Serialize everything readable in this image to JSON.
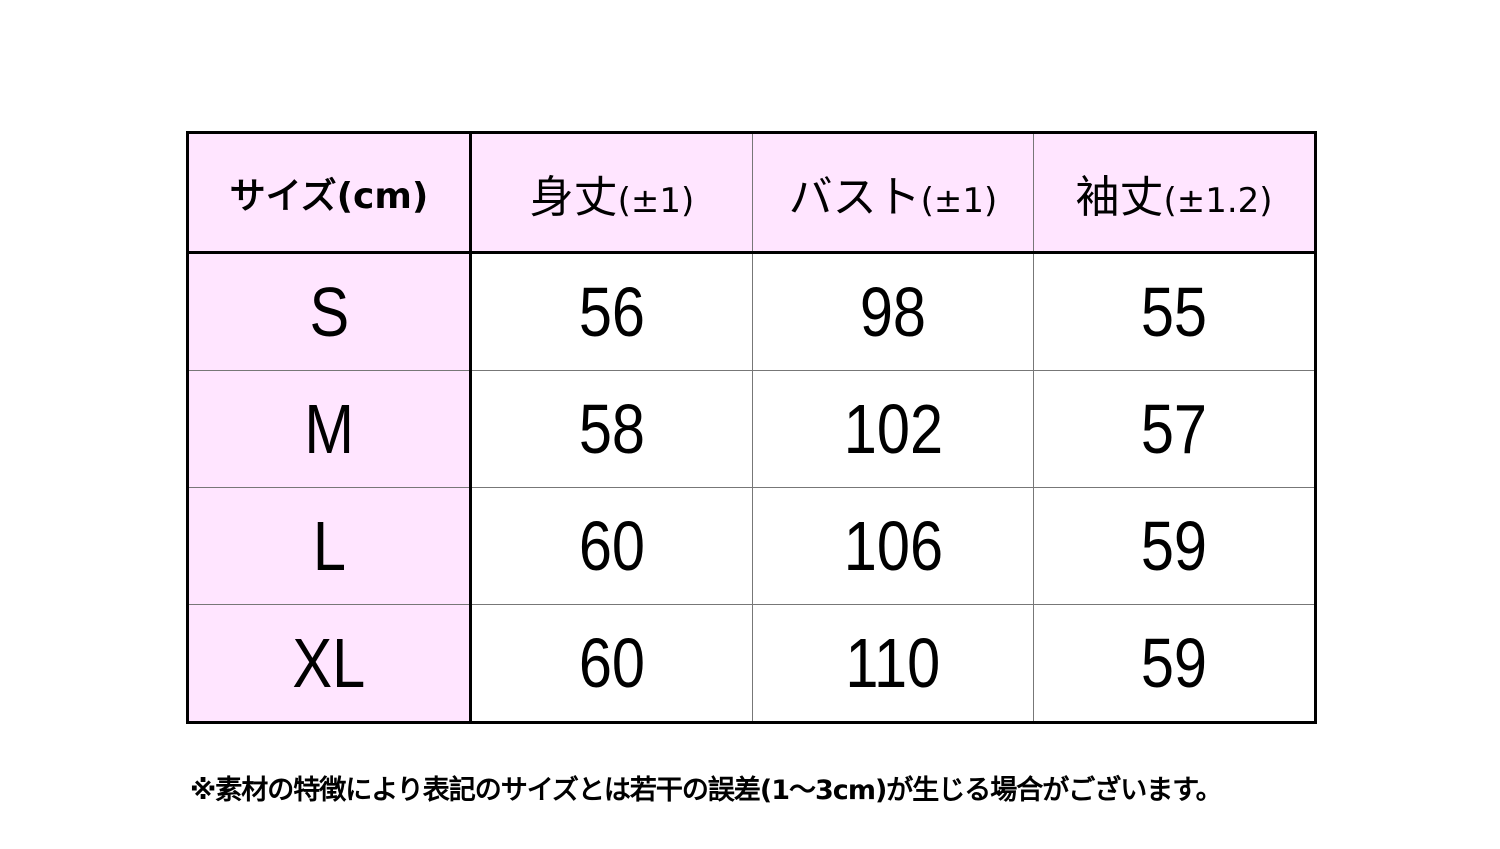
{
  "table": {
    "headers": [
      {
        "label": "サイズ(cm)",
        "tolerance": ""
      },
      {
        "label": "身丈",
        "tolerance": "(±1)"
      },
      {
        "label": "バスト",
        "tolerance": "(±1)"
      },
      {
        "label": "袖丈",
        "tolerance": "(±1.2)"
      }
    ],
    "rows": [
      {
        "size": "S",
        "length": "56",
        "bust": "98",
        "sleeve": "55"
      },
      {
        "size": "M",
        "length": "58",
        "bust": "102",
        "sleeve": "57"
      },
      {
        "size": "L",
        "length": "60",
        "bust": "106",
        "sleeve": "59"
      },
      {
        "size": "XL",
        "length": "60",
        "bust": "110",
        "sleeve": "59"
      }
    ],
    "header_color": "#ffe5ff"
  },
  "note": "※素材の特徴により表記のサイズとは若干の誤差(1～3cm)が生じる場合がございます。"
}
